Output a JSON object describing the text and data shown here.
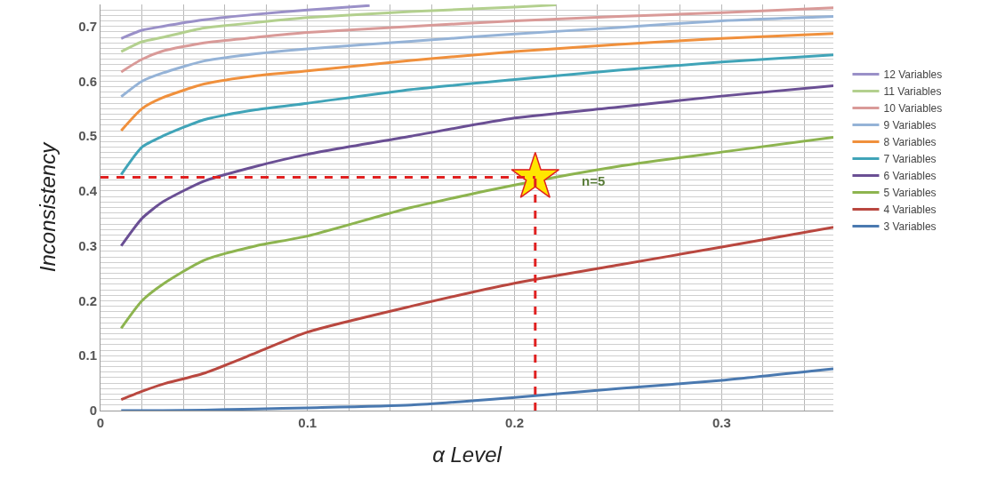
{
  "chart_data": {
    "type": "line",
    "xlabel": "α Level",
    "ylabel": "Inconsistency",
    "x": [
      0.01,
      0.02,
      0.03,
      0.05,
      0.075,
      0.1,
      0.15,
      0.2,
      0.25,
      0.3,
      0.354
    ],
    "series": [
      {
        "name": "12 Variables",
        "color": "#9a90c8",
        "x": [
          0.01,
          0.02,
          0.03,
          0.05,
          0.075,
          0.1,
          0.13
        ],
        "values": [
          0.678,
          0.693,
          0.7,
          0.712,
          0.722,
          0.73,
          0.738
        ]
      },
      {
        "name": "11 Variables",
        "color": "#b3d08e",
        "x": [
          0.01,
          0.02,
          0.03,
          0.05,
          0.075,
          0.1,
          0.15,
          0.2,
          0.22
        ],
        "values": [
          0.654,
          0.672,
          0.68,
          0.697,
          0.707,
          0.716,
          0.727,
          0.735,
          0.739
        ]
      },
      {
        "name": "10 Variables",
        "color": "#d99a98",
        "values": [
          0.617,
          0.64,
          0.655,
          0.67,
          0.68,
          0.689,
          0.7,
          0.71,
          0.718,
          0.725,
          0.734
        ]
      },
      {
        "name": "9 Variables",
        "color": "#95b3d7",
        "values": [
          0.572,
          0.6,
          0.615,
          0.637,
          0.65,
          0.659,
          0.673,
          0.686,
          0.698,
          0.71,
          0.718
        ]
      },
      {
        "name": "8 Variables",
        "color": "#f0903c",
        "values": [
          0.51,
          0.55,
          0.57,
          0.595,
          0.61,
          0.619,
          0.638,
          0.654,
          0.667,
          0.678,
          0.687
        ]
      },
      {
        "name": "7 Variables",
        "color": "#40a4b8",
        "values": [
          0.43,
          0.48,
          0.5,
          0.53,
          0.548,
          0.56,
          0.585,
          0.603,
          0.62,
          0.635,
          0.648
        ]
      },
      {
        "name": "6 Variables",
        "color": "#6a4f94",
        "values": [
          0.3,
          0.35,
          0.38,
          0.418,
          0.445,
          0.467,
          0.5,
          0.533,
          0.553,
          0.573,
          0.592
        ]
      },
      {
        "name": "5 Variables",
        "color": "#8db44f",
        "values": [
          0.15,
          0.2,
          0.23,
          0.274,
          0.3,
          0.318,
          0.37,
          0.411,
          0.445,
          0.471,
          0.498
        ]
      },
      {
        "name": "4 Variables",
        "color": "#b9473f",
        "values": [
          0.02,
          0.035,
          0.048,
          0.068,
          0.105,
          0.143,
          0.19,
          0.232,
          0.265,
          0.298,
          0.334
        ]
      },
      {
        "name": "3 Variables",
        "color": "#4a79b0",
        "values": [
          0,
          0,
          0,
          0.001,
          0.003,
          0.005,
          0.01,
          0.024,
          0.04,
          0.055,
          0.076
        ]
      },
      {
        "type": "scatter",
        "marker": "star",
        "color": "#ffe600",
        "x": [
          0.21
        ],
        "values": [
          0.425
        ]
      }
    ],
    "ref_lines": [
      {
        "axis": "y",
        "value": 0.425,
        "color": "#e02020",
        "line_style": "dashed"
      },
      {
        "axis": "x",
        "value": 0.21,
        "color": "#e02020",
        "line_style": "dashed"
      }
    ],
    "annotations": [
      "n=5"
    ],
    "xlim": [
      0,
      0.354
    ],
    "xticks": [
      0,
      {
        "value": 0.02,
        "label": null
      },
      {
        "value": 0.04,
        "label": null
      },
      {
        "value": 0.06,
        "label": null
      },
      {
        "value": 0.08,
        "label": null
      },
      0.1,
      {
        "value": 0.12,
        "label": null
      },
      {
        "value": 0.14,
        "label": null
      },
      {
        "value": 0.16,
        "label": null
      },
      {
        "value": 0.18,
        "label": null
      },
      0.2,
      {
        "value": 0.22,
        "label": null
      },
      {
        "value": 0.24,
        "label": null
      },
      {
        "value": 0.26,
        "label": null
      },
      {
        "value": 0.28,
        "label": null
      },
      0.3,
      {
        "value": 0.32,
        "label": null
      },
      {
        "value": 0.34,
        "label": null
      }
    ],
    "ylim": [
      0,
      0.74
    ],
    "yticks": [
      0,
      {
        "value": 0.01,
        "label": null
      },
      {
        "value": 0.02,
        "label": null
      },
      {
        "value": 0.03,
        "label": null
      },
      {
        "value": 0.04,
        "label": null
      },
      {
        "value": 0.05,
        "label": null
      },
      {
        "value": 0.06,
        "label": null
      },
      {
        "value": 0.07,
        "label": null
      },
      {
        "value": 0.08,
        "label": null
      },
      {
        "value": 0.09,
        "label": null
      },
      0.1,
      {
        "value": 0.11,
        "label": null
      },
      {
        "value": 0.12,
        "label": null
      },
      {
        "value": 0.13,
        "label": null
      },
      {
        "value": 0.14,
        "label": null
      },
      {
        "value": 0.15,
        "label": null
      },
      {
        "value": 0.16,
        "label": null
      },
      {
        "value": 0.17,
        "label": null
      },
      {
        "value": 0.18,
        "label": null
      },
      {
        "value": 0.19,
        "label": null
      },
      0.2,
      {
        "value": 0.21,
        "label": null
      },
      {
        "value": 0.22,
        "label": null
      },
      {
        "value": 0.23,
        "label": null
      },
      {
        "value": 0.24,
        "label": null
      },
      {
        "value": 0.25,
        "label": null
      },
      {
        "value": 0.26,
        "label": null
      },
      {
        "value": 0.27,
        "label": null
      },
      {
        "value": 0.28,
        "label": null
      },
      {
        "value": 0.29,
        "label": null
      },
      0.3,
      {
        "value": 0.31,
        "label": null
      },
      {
        "value": 0.32,
        "label": null
      },
      {
        "value": 0.33,
        "label": null
      },
      {
        "value": 0.34,
        "label": null
      },
      {
        "value": 0.35,
        "label": null
      },
      {
        "value": 0.36,
        "label": null
      },
      {
        "value": 0.37,
        "label": null
      },
      {
        "value": 0.38,
        "label": null
      },
      {
        "value": 0.39,
        "label": null
      },
      0.4,
      {
        "value": 0.41,
        "label": null
      },
      {
        "value": 0.42,
        "label": null
      },
      {
        "value": 0.43,
        "label": null
      },
      {
        "value": 0.44,
        "label": null
      },
      {
        "value": 0.45,
        "label": null
      },
      {
        "value": 0.46,
        "label": null
      },
      {
        "value": 0.47,
        "label": null
      },
      {
        "value": 0.48,
        "label": null
      },
      {
        "value": 0.49,
        "label": null
      },
      0.5,
      {
        "value": 0.51,
        "label": null
      },
      {
        "value": 0.52,
        "label": null
      },
      {
        "value": 0.53,
        "label": null
      },
      {
        "value": 0.54,
        "label": null
      },
      {
        "value": 0.55,
        "label": null
      },
      {
        "value": 0.56,
        "label": null
      },
      {
        "value": 0.57,
        "label": null
      },
      {
        "value": 0.58,
        "label": null
      },
      {
        "value": 0.59,
        "label": null
      },
      0.6,
      {
        "value": 0.61,
        "label": null
      },
      {
        "value": 0.62,
        "label": null
      },
      {
        "value": 0.63,
        "label": null
      },
      {
        "value": 0.64,
        "label": null
      },
      {
        "value": 0.65,
        "label": null
      },
      {
        "value": 0.66,
        "label": null
      },
      {
        "value": 0.67,
        "label": null
      },
      {
        "value": 0.68,
        "label": null
      },
      {
        "value": 0.69,
        "label": null
      },
      0.7,
      {
        "value": 0.71,
        "label": null
      },
      {
        "value": 0.72,
        "label": null
      },
      {
        "value": 0.73,
        "label": null
      }
    ],
    "grid": true,
    "legend": "right",
    "line_style": "solid",
    "marker": "none"
  }
}
